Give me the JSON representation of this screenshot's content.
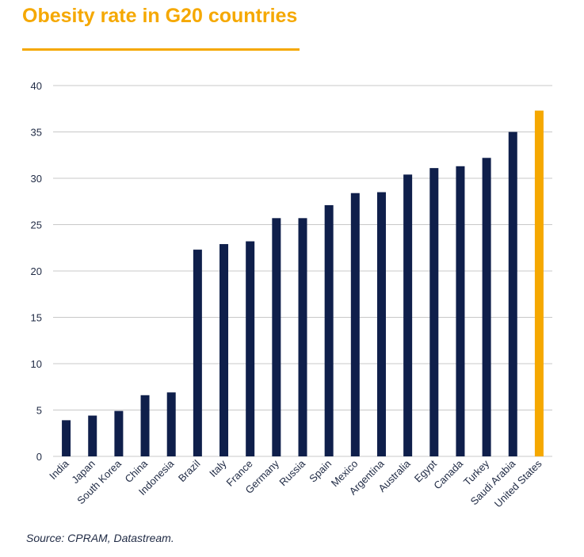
{
  "title": "Obesity rate in G20 countries",
  "source": "Source: CPRAM, Datastream.",
  "colors": {
    "title": "#f5a800",
    "bar": "#0f1f4b",
    "highlight_bar": "#f5a800",
    "grid": "#c8c8c8",
    "axis_text": "#1f2a44"
  },
  "chart_data": {
    "type": "bar",
    "title": "Obesity rate in G20 countries",
    "xlabel": "",
    "ylabel": "",
    "ylim": [
      0,
      40
    ],
    "yticks": [
      0,
      5,
      10,
      15,
      20,
      25,
      30,
      35,
      40
    ],
    "grid": true,
    "highlight": "United States",
    "categories": [
      "India",
      "Japan",
      "South Korea",
      "China",
      "Indonesia",
      "Brazil",
      "Italy",
      "France",
      "Germany",
      "Russia",
      "Spain",
      "Mexico",
      "Argentina",
      "Australia",
      "Egypt",
      "Canada",
      "Turkey",
      "Saudi Arabia",
      "United States"
    ],
    "values": [
      3.9,
      4.4,
      4.9,
      6.6,
      6.9,
      22.3,
      22.9,
      23.2,
      25.7,
      25.7,
      27.1,
      28.4,
      28.5,
      30.4,
      31.1,
      31.3,
      32.2,
      35.0,
      37.3
    ]
  }
}
